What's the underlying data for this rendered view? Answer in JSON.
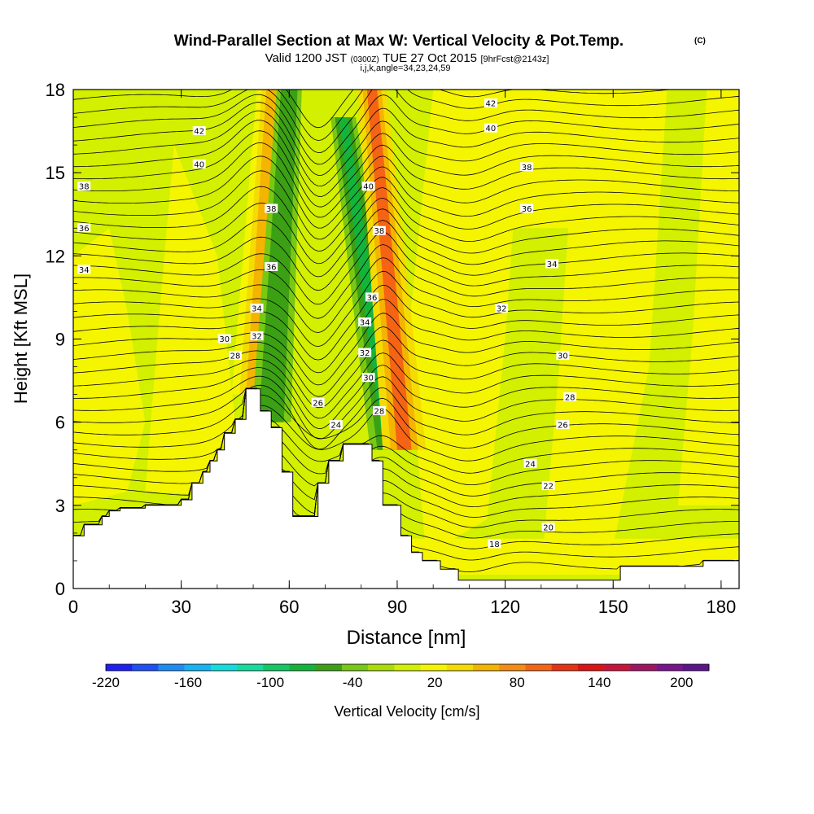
{
  "chart_data": {
    "type": "heatmap",
    "title": {
      "main": "Wind-Parallel Section at Max W: Vertical Velocity & Pot.Temp.",
      "main_unit": "(C)",
      "valid_prefix": "Valid 1200 JST",
      "valid_utc": "(0300Z)",
      "valid_date": "TUE 27 Oct 2015",
      "forecast": "[9hrFcst@2143z]",
      "subtitle": "i,j,k,angle=34,23,24,59"
    },
    "xlabel": "Distance [nm]",
    "ylabel": "Height [Kft MSL]",
    "xlim": [
      0,
      185
    ],
    "ylim": [
      0,
      18
    ],
    "x_ticks": [
      "0",
      "30",
      "60",
      "90",
      "120",
      "150",
      "180"
    ],
    "y_ticks": [
      "0",
      "3",
      "6",
      "9",
      "12",
      "15",
      "18"
    ],
    "colorbar": {
      "label": "Vertical Velocity [cm/s]",
      "ticks": [
        "-220",
        "-160",
        "-100",
        "-40",
        "20",
        "80",
        "140",
        "200"
      ],
      "min": -220,
      "max": 220,
      "colors": [
        "#1e1ef5",
        "#1e50f5",
        "#1e8cf5",
        "#14b4f5",
        "#14dcdc",
        "#14dc9c",
        "#14c864",
        "#14b43c",
        "#3ca014",
        "#78c814",
        "#aadc0a",
        "#d2f000",
        "#f5f500",
        "#f5dc00",
        "#f5b400",
        "#f58c14",
        "#f56414",
        "#e63214",
        "#dc1414",
        "#c8143c",
        "#a01464",
        "#78148c",
        "#5a148c"
      ]
    },
    "terrain": {
      "x": [
        0,
        3,
        3,
        8,
        8,
        10,
        10,
        13,
        13,
        20,
        20,
        30,
        30,
        33,
        33,
        36,
        36,
        38,
        38,
        40,
        40,
        42,
        42,
        45,
        45,
        48,
        48,
        52,
        52,
        55,
        55,
        58,
        58,
        61,
        61,
        62,
        62,
        68,
        68,
        71,
        71,
        75,
        75,
        83,
        83,
        86,
        86,
        91,
        91,
        94,
        94,
        97,
        97,
        102,
        102,
        107,
        107,
        110,
        110,
        152,
        152,
        160,
        160,
        175,
        175,
        185
      ],
      "y": [
        1.9,
        1.9,
        2.3,
        2.3,
        2.6,
        2.6,
        2.8,
        2.8,
        2.9,
        2.9,
        3.0,
        3.0,
        3.2,
        3.2,
        3.8,
        3.8,
        4.2,
        4.2,
        4.6,
        4.6,
        5.0,
        5.0,
        5.6,
        5.6,
        6.1,
        6.1,
        7.2,
        7.2,
        6.4,
        6.4,
        5.8,
        5.8,
        4.2,
        4.2,
        2.6,
        2.6,
        2.6,
        2.6,
        3.8,
        3.8,
        4.6,
        4.6,
        5.2,
        5.2,
        4.6,
        4.6,
        3.0,
        3.0,
        1.9,
        1.9,
        1.3,
        1.3,
        1.0,
        1.0,
        0.7,
        0.7,
        0.3,
        0.3,
        0.3,
        0.3,
        0.8,
        0.8,
        0.8,
        0.8,
        1.0,
        1.0
      ]
    },
    "vertical_velocity_features": [
      {
        "type": "updraft",
        "x_bottom": 50,
        "x_top": 55,
        "y_bottom": 7,
        "y_top": 18,
        "value": 60
      },
      {
        "type": "downdraft",
        "x_bottom": 55,
        "x_top": 60,
        "y_bottom": 6,
        "y_top": 18,
        "value": -60
      },
      {
        "type": "downdraft",
        "x_bottom": 88,
        "x_top": 75,
        "y_bottom": 5,
        "y_top": 17,
        "value": -70
      },
      {
        "type": "updraft",
        "x_bottom": 92,
        "x_top": 83,
        "y_bottom": 5,
        "y_top": 18,
        "value": 90
      }
    ],
    "theta_contour_labels": [
      {
        "text": "42",
        "x": 35,
        "y": 16.5
      },
      {
        "text": "42",
        "x": 116,
        "y": 17.5
      },
      {
        "text": "40",
        "x": 35,
        "y": 15.3
      },
      {
        "text": "40",
        "x": 116,
        "y": 16.6
      },
      {
        "text": "40",
        "x": 82,
        "y": 14.5
      },
      {
        "text": "38",
        "x": 3,
        "y": 14.5
      },
      {
        "text": "38",
        "x": 126,
        "y": 15.2
      },
      {
        "text": "38",
        "x": 55,
        "y": 13.7
      },
      {
        "text": "38",
        "x": 85,
        "y": 12.9
      },
      {
        "text": "36",
        "x": 3,
        "y": 13.0
      },
      {
        "text": "36",
        "x": 126,
        "y": 13.7
      },
      {
        "text": "36",
        "x": 55,
        "y": 11.6
      },
      {
        "text": "36",
        "x": 83,
        "y": 10.5
      },
      {
        "text": "34",
        "x": 3,
        "y": 11.5
      },
      {
        "text": "34",
        "x": 133,
        "y": 11.7
      },
      {
        "text": "34",
        "x": 51,
        "y": 10.1
      },
      {
        "text": "34",
        "x": 81,
        "y": 9.6
      },
      {
        "text": "32",
        "x": 119,
        "y": 10.1
      },
      {
        "text": "32",
        "x": 51,
        "y": 9.1
      },
      {
        "text": "32",
        "x": 81,
        "y": 8.5
      },
      {
        "text": "30",
        "x": 42,
        "y": 9.0
      },
      {
        "text": "30",
        "x": 136,
        "y": 8.4
      },
      {
        "text": "30",
        "x": 82,
        "y": 7.6
      },
      {
        "text": "28",
        "x": 45,
        "y": 8.4
      },
      {
        "text": "28",
        "x": 138,
        "y": 6.9
      },
      {
        "text": "28",
        "x": 85,
        "y": 6.4
      },
      {
        "text": "26",
        "x": 68,
        "y": 6.7
      },
      {
        "text": "26",
        "x": 136,
        "y": 5.9
      },
      {
        "text": "24",
        "x": 73,
        "y": 5.9
      },
      {
        "text": "24",
        "x": 127,
        "y": 4.5
      },
      {
        "text": "22",
        "x": 132,
        "y": 3.7
      },
      {
        "text": "20",
        "x": 132,
        "y": 2.2
      },
      {
        "text": "18",
        "x": 117,
        "y": 1.6
      }
    ]
  }
}
